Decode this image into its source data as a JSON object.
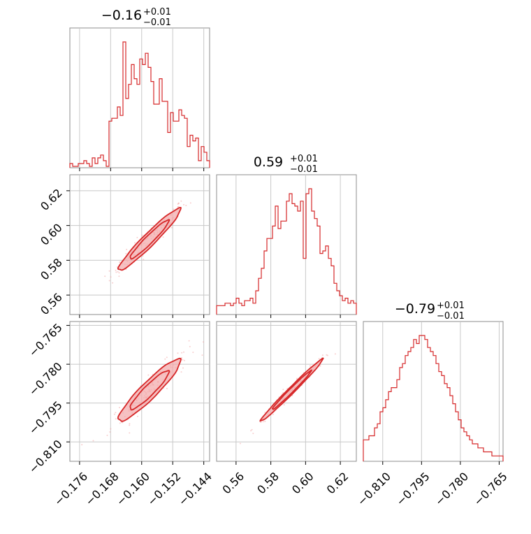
{
  "colors": {
    "accent": "#d62728",
    "fill": "#f2a7a8",
    "grid": "#c8c8c8",
    "frame": "#8c8c8c"
  },
  "chart_data": {
    "type": "corner",
    "parameters": [
      {
        "title": {
          "main": "−0.16",
          "plus": "+0.01",
          "minus": "−0.01"
        },
        "median": -0.158,
        "range": [
          -0.1785,
          -0.1425
        ],
        "ticks": [
          -0.176,
          -0.168,
          -0.16,
          -0.152,
          -0.144
        ],
        "tick_labels": [
          "−0.176",
          "−0.168",
          "−0.160",
          "−0.152",
          "−0.144"
        ],
        "hist": [
          1,
          0,
          0,
          1,
          1,
          2,
          1,
          0,
          3,
          1,
          3,
          4,
          2,
          0,
          16,
          17,
          17,
          21,
          18,
          44,
          24,
          29,
          36,
          31,
          29,
          38,
          36,
          40,
          35,
          30,
          22,
          22,
          31,
          23,
          23,
          12,
          19,
          16,
          16,
          20,
          18,
          17,
          7,
          11,
          9,
          10,
          2,
          7,
          5,
          2
        ]
      },
      {
        "title": {
          "main": "0.59",
          "plus": "+0.01",
          "minus": "−0.01"
        },
        "median": 0.592,
        "range": [
          0.5488,
          0.6292
        ],
        "ticks": [
          0.56,
          0.58,
          0.6,
          0.62
        ],
        "tick_labels": [
          "0.56",
          "0.58",
          "0.60",
          "0.62"
        ],
        "hist": [
          3,
          3,
          3,
          4,
          4,
          3,
          4,
          6,
          4,
          3,
          5,
          5,
          6,
          4,
          9,
          14,
          18,
          25,
          30,
          30,
          35,
          43,
          34,
          37,
          37,
          45,
          48,
          44,
          43,
          41,
          45,
          22,
          48,
          50,
          41,
          38,
          35,
          24,
          25,
          27,
          22,
          19,
          12,
          9,
          7,
          5,
          6,
          4,
          5,
          4
        ]
      },
      {
        "title": {
          "main": "−0.79",
          "plus": "+0.01",
          "minus": "−0.01"
        },
        "median": -0.79,
        "range": [
          -0.8175,
          -0.7635
        ],
        "ticks": [
          -0.81,
          -0.795,
          -0.78,
          -0.765
        ],
        "tick_labels": [
          "−0.810",
          "−0.795",
          "−0.780",
          "−0.765"
        ],
        "hist": [
          5,
          5,
          6,
          6,
          8,
          9,
          12,
          13,
          15,
          17,
          18,
          18,
          20,
          23,
          24,
          26,
          27,
          28,
          30,
          29,
          31,
          31,
          30,
          28,
          27,
          26,
          24,
          22,
          21,
          19,
          18,
          16,
          14,
          12,
          10,
          8,
          7,
          6,
          5,
          4,
          4,
          3,
          3,
          2,
          2,
          2,
          1,
          1,
          1,
          1
        ]
      }
    ],
    "correlations": {
      "0-1": 0.96,
      "0-2": 0.93,
      "1-2": 0.99
    }
  }
}
